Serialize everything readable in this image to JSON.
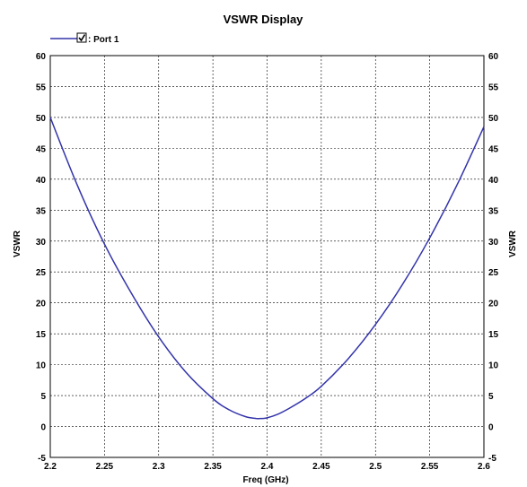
{
  "chart_data": {
    "type": "line",
    "title": "VSWR Display",
    "xlabel": "Freq (GHz)",
    "ylabel": "VSWR",
    "ylabel_right": "VSWR",
    "xlim": [
      2.2,
      2.6
    ],
    "ylim": [
      -5,
      60
    ],
    "x_ticks": [
      "2.2",
      "2.25",
      "2.3",
      "2.35",
      "2.4",
      "2.45",
      "2.5",
      "2.55",
      "2.6"
    ],
    "y_ticks": [
      "-5",
      "0",
      "5",
      "10",
      "15",
      "20",
      "25",
      "30",
      "35",
      "40",
      "45",
      "50",
      "55",
      "60"
    ],
    "grid": true,
    "legend_position": "top-left",
    "series": [
      {
        "name": "Port 1",
        "color": "#3333aa",
        "x": [
          2.2,
          2.225,
          2.25,
          2.275,
          2.3,
          2.325,
          2.35,
          2.365,
          2.38,
          2.39,
          2.395,
          2.4,
          2.41,
          2.42,
          2.435,
          2.45,
          2.475,
          2.5,
          2.525,
          2.55,
          2.575,
          2.6
        ],
        "y": [
          50,
          39,
          29.5,
          21.5,
          14.5,
          8.8,
          4.5,
          2.7,
          1.6,
          1.3,
          1.3,
          1.4,
          2.0,
          2.9,
          4.5,
          6.5,
          11,
          16.5,
          23,
          30.5,
          39,
          48.5
        ]
      }
    ]
  }
}
